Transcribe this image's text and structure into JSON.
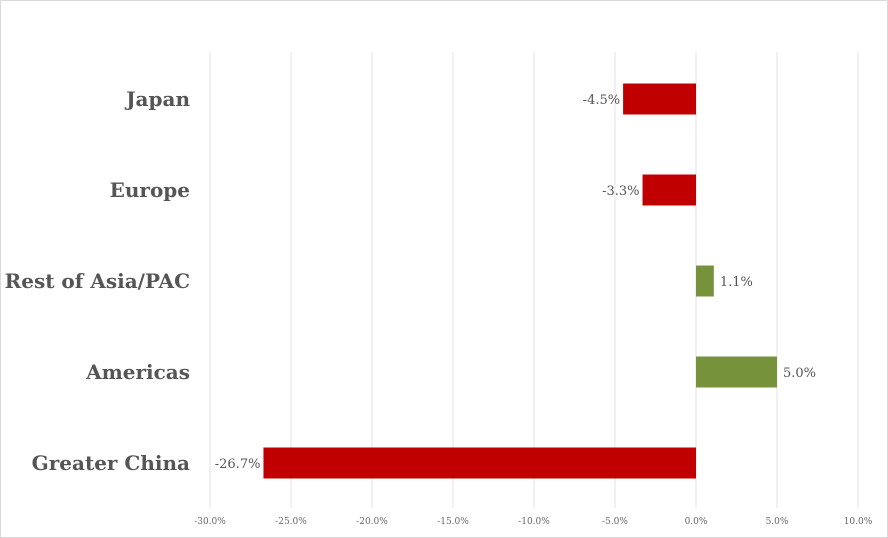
{
  "chart_data": {
    "type": "bar",
    "orientation": "horizontal",
    "categories": [
      "Japan",
      "Europe",
      "Rest of Asia/PAC",
      "Americas",
      "Greater China"
    ],
    "values": [
      -4.5,
      -3.3,
      1.1,
      5.0,
      -26.7
    ],
    "value_labels": [
      "-4.5%",
      "-3.3%",
      "1.1%",
      "5.0%",
      "-26.7%"
    ],
    "xlim": [
      -30,
      10
    ],
    "x_ticks": [
      -30,
      -25,
      -20,
      -15,
      -10,
      -5,
      0,
      5,
      10
    ],
    "x_tick_labels": [
      "-30.0%",
      "-25.0%",
      "-20.0%",
      "-15.0%",
      "-10.0%",
      "-5.0%",
      "0.0%",
      "5.0%",
      "10.0%"
    ],
    "grid": true,
    "legend": false,
    "colors": {
      "negative": "#c00000",
      "positive": "#76933c"
    }
  }
}
